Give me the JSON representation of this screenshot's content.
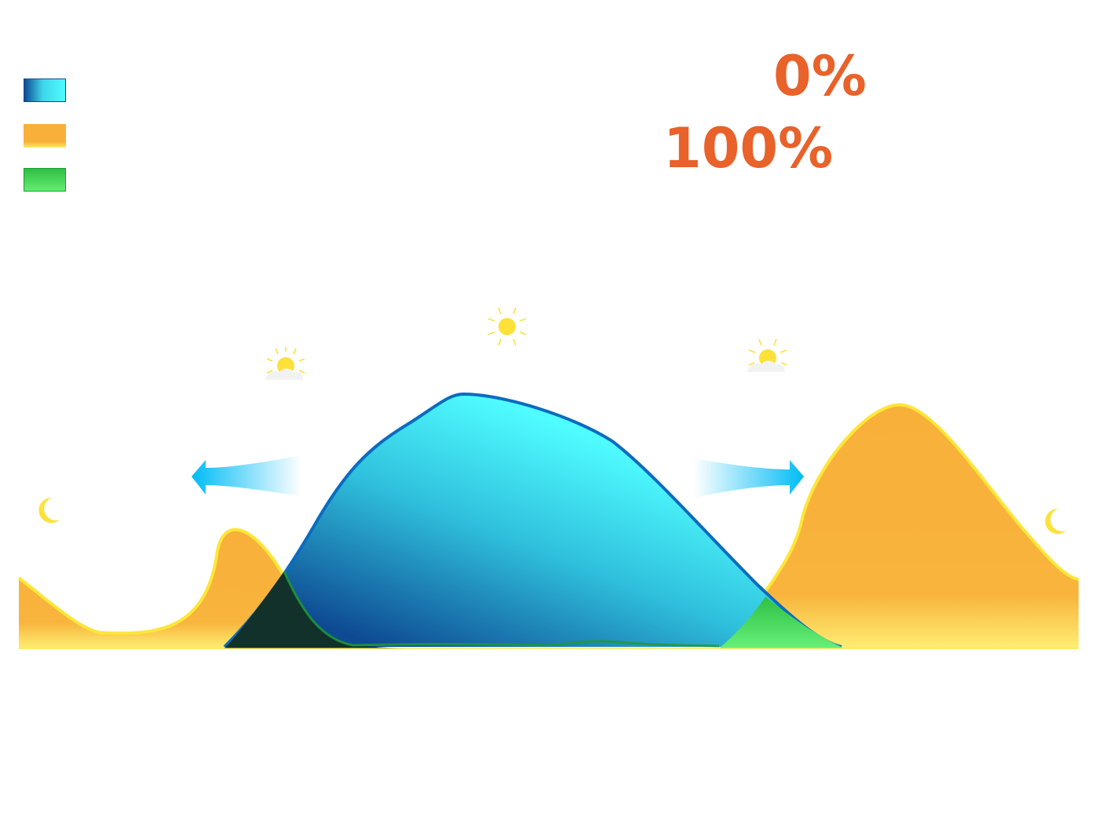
{
  "indicators": {
    "top_value": "0%",
    "bottom_value": "100%"
  },
  "legend": [
    {
      "key": "solar",
      "color": "#4ffcff"
    },
    {
      "key": "grid",
      "color": "#f8b03a"
    },
    {
      "key": "battery",
      "color": "#3fd45a"
    }
  ],
  "icons": [
    "moon-icon",
    "sunrise-icon",
    "sun-icon",
    "sunset-icon",
    "moon-icon",
    "arrow-left-icon",
    "arrow-right-icon"
  ],
  "colors": {
    "solar_fill_dark": "#0e4a92",
    "solar_fill_light": "#4ffcff",
    "solar_stroke": "#0a6cbf",
    "grid_fill": "#f8b03a",
    "grid_stroke": "#fde638",
    "battery_fill": "#3fd45a",
    "night_overlap": "#12312a",
    "percent_text": "#e8622a",
    "arrow": "#00bcf5",
    "sun": "#fde138"
  }
}
